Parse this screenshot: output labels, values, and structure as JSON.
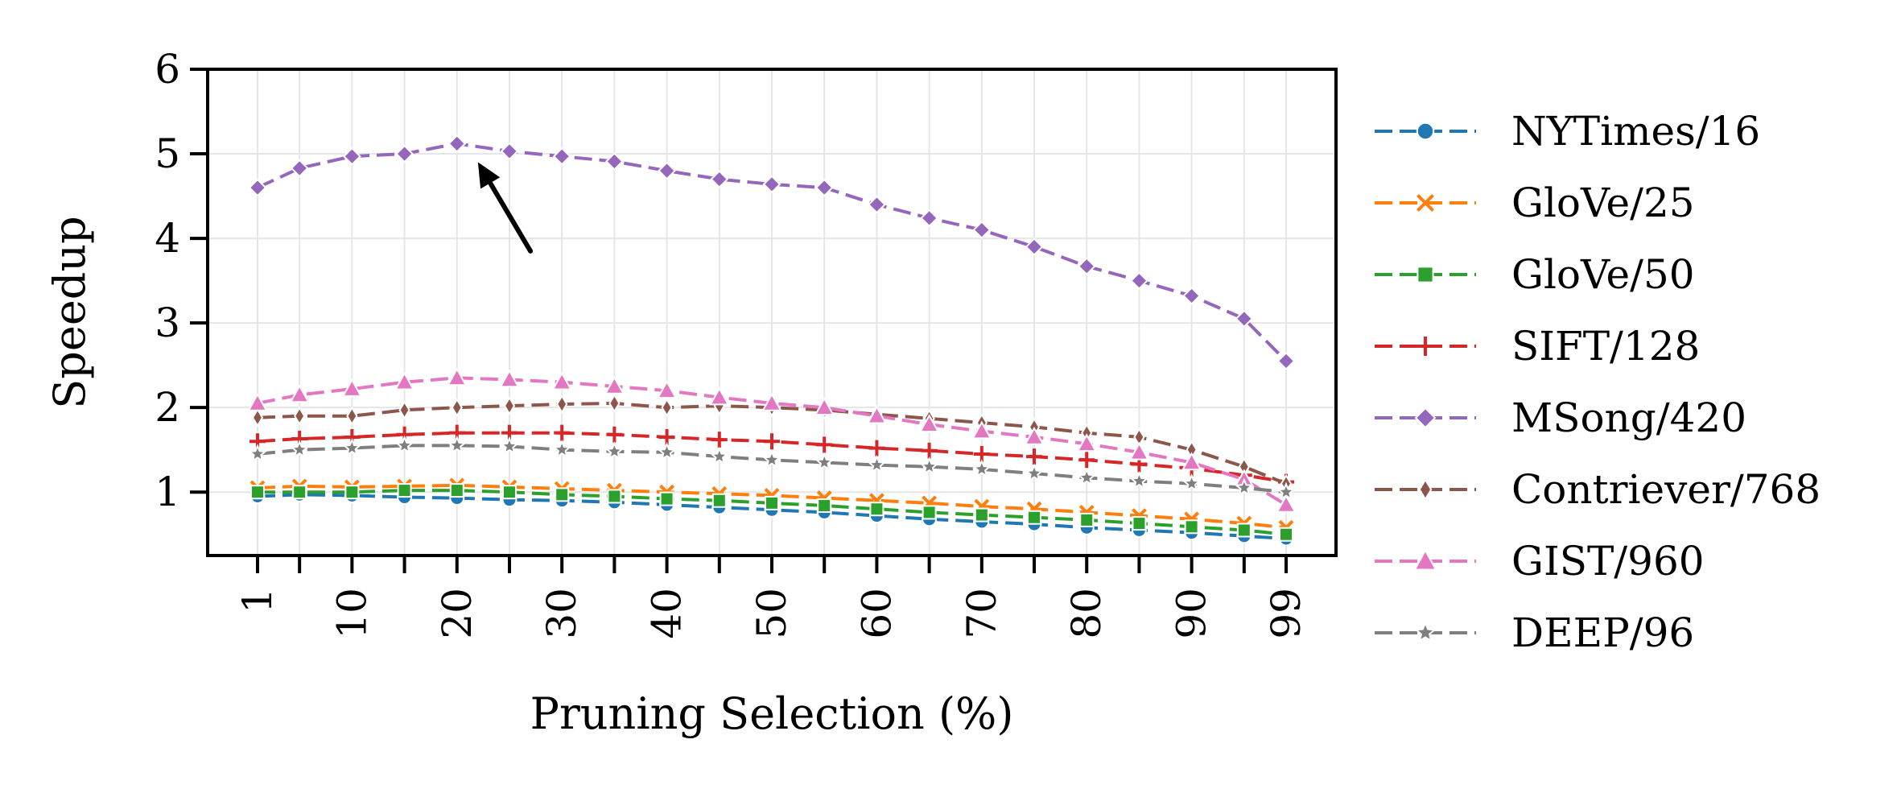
{
  "chart_data": {
    "type": "line",
    "title": "",
    "xlabel": "Pruning Selection (%)",
    "ylabel": "Speedup",
    "x": [
      1,
      5,
      10,
      15,
      20,
      25,
      30,
      35,
      40,
      45,
      50,
      55,
      60,
      65,
      70,
      75,
      80,
      85,
      90,
      95,
      99
    ],
    "xticks": [
      1,
      10,
      20,
      30,
      40,
      50,
      60,
      70,
      80,
      90,
      99
    ],
    "xtick_labels": [
      "1",
      "10",
      "20",
      "30",
      "40",
      "50",
      "60",
      "70",
      "80",
      "90",
      "99"
    ],
    "ylim": [
      0.25,
      6
    ],
    "yticks": [
      1,
      2,
      3,
      4,
      5,
      6
    ],
    "ytick_labels": [
      "1",
      "2",
      "3",
      "4",
      "5",
      "6"
    ],
    "grid": true,
    "legend_position": "outside-right",
    "series": [
      {
        "name": "NYTimes/16",
        "color": "#1f77b4",
        "marker": "circle",
        "values": [
          0.95,
          0.97,
          0.96,
          0.94,
          0.93,
          0.91,
          0.9,
          0.88,
          0.85,
          0.82,
          0.79,
          0.76,
          0.72,
          0.68,
          0.65,
          0.62,
          0.58,
          0.55,
          0.52,
          0.48,
          0.45
        ]
      },
      {
        "name": "GloVe/25",
        "color": "#ff7f0e",
        "marker": "x",
        "values": [
          1.05,
          1.07,
          1.06,
          1.07,
          1.08,
          1.06,
          1.04,
          1.02,
          1.0,
          0.98,
          0.96,
          0.93,
          0.9,
          0.87,
          0.83,
          0.8,
          0.76,
          0.72,
          0.68,
          0.63,
          0.58
        ]
      },
      {
        "name": "GloVe/50",
        "color": "#2ca02c",
        "marker": "square",
        "values": [
          1.0,
          1.0,
          1.0,
          1.02,
          1.02,
          1.0,
          0.97,
          0.95,
          0.92,
          0.9,
          0.87,
          0.84,
          0.8,
          0.76,
          0.73,
          0.7,
          0.67,
          0.63,
          0.59,
          0.55,
          0.5
        ]
      },
      {
        "name": "SIFT/128",
        "color": "#d62728",
        "marker": "plus",
        "values": [
          1.6,
          1.63,
          1.65,
          1.68,
          1.7,
          1.7,
          1.7,
          1.68,
          1.65,
          1.62,
          1.6,
          1.56,
          1.52,
          1.49,
          1.45,
          1.42,
          1.38,
          1.33,
          1.28,
          1.2,
          1.12
        ]
      },
      {
        "name": "MSong/420",
        "color": "#9467bd",
        "marker": "diamond",
        "values": [
          4.6,
          4.83,
          4.97,
          5.0,
          5.12,
          5.03,
          4.97,
          4.91,
          4.8,
          4.7,
          4.64,
          4.6,
          4.4,
          4.24,
          4.1,
          3.9,
          3.67,
          3.5,
          3.32,
          3.05,
          2.55
        ]
      },
      {
        "name": "Contriever/768",
        "color": "#8c564b",
        "marker": "thin_diamond",
        "values": [
          1.88,
          1.9,
          1.9,
          1.97,
          2.0,
          2.02,
          2.04,
          2.05,
          2.0,
          2.02,
          2.0,
          1.97,
          1.92,
          1.87,
          1.82,
          1.77,
          1.7,
          1.65,
          1.5,
          1.3,
          1.1
        ]
      },
      {
        "name": "GIST/960",
        "color": "#e377c2",
        "marker": "triangle",
        "values": [
          2.05,
          2.15,
          2.22,
          2.3,
          2.35,
          2.33,
          2.3,
          2.25,
          2.2,
          2.12,
          2.05,
          2.0,
          1.9,
          1.8,
          1.72,
          1.65,
          1.57,
          1.47,
          1.35,
          1.15,
          0.85
        ]
      },
      {
        "name": "DEEP/96",
        "color": "#7f7f7f",
        "marker": "star",
        "values": [
          1.45,
          1.5,
          1.52,
          1.55,
          1.55,
          1.54,
          1.5,
          1.48,
          1.47,
          1.42,
          1.38,
          1.35,
          1.32,
          1.3,
          1.27,
          1.22,
          1.17,
          1.13,
          1.1,
          1.05,
          1.0
        ]
      }
    ],
    "annotation": {
      "type": "arrow",
      "from": [
        27,
        3.85
      ],
      "to": [
        22,
        4.9
      ],
      "color": "#000000"
    }
  }
}
